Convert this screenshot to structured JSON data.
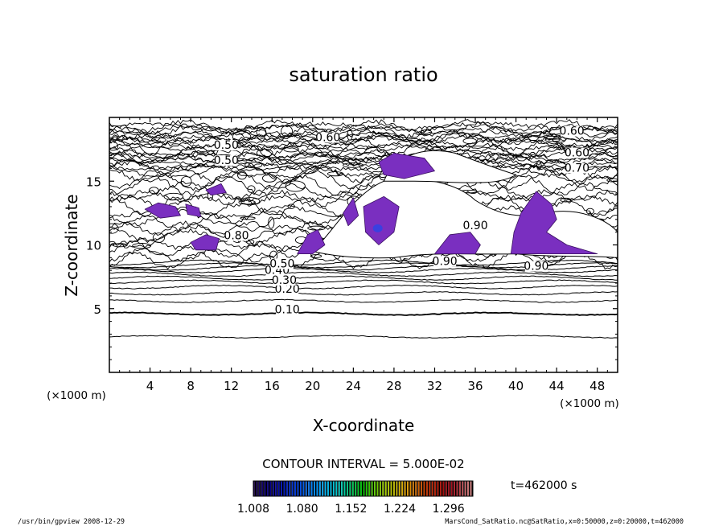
{
  "chart_data": {
    "type": "contour",
    "title": "saturation ratio",
    "xlabel": "X-coordinate",
    "ylabel": "Z-coordinate",
    "x_unit": "(×1000 m)",
    "y_unit": "(×1000 m)",
    "xlim": [
      0,
      50
    ],
    "ylim": [
      0,
      20
    ],
    "x_ticks": [
      4,
      8,
      12,
      16,
      20,
      24,
      28,
      32,
      36,
      40,
      44,
      48
    ],
    "y_ticks": [
      5,
      10,
      15
    ],
    "contour_interval_text": "CONTOUR INTERVAL = 5.000E-02",
    "time_text": "t=462000 s",
    "contour_labels": [
      {
        "text": "0.10",
        "x": 17.5,
        "z": 4.7
      },
      {
        "text": "0.20",
        "x": 17.5,
        "z": 6.3
      },
      {
        "text": "0.30",
        "x": 17.2,
        "z": 7.0
      },
      {
        "text": "0.40",
        "x": 16.5,
        "z": 7.8
      },
      {
        "text": "0.50",
        "x": 17.0,
        "z": 8.3
      },
      {
        "text": "0.50",
        "x": 11.5,
        "z": 17.6
      },
      {
        "text": "0.50",
        "x": 11.5,
        "z": 16.4
      },
      {
        "text": "0.60",
        "x": 21.5,
        "z": 18.2
      },
      {
        "text": "0.60",
        "x": 45.5,
        "z": 18.7
      },
      {
        "text": "0.60",
        "x": 46.0,
        "z": 17.0
      },
      {
        "text": "0.70",
        "x": 46.0,
        "z": 15.8
      },
      {
        "text": "0.80",
        "x": 12.5,
        "z": 10.5
      },
      {
        "text": "0.90",
        "x": 33.0,
        "z": 8.5
      },
      {
        "text": "0.90",
        "x": 42.0,
        "z": 8.1
      },
      {
        "text": "0.90",
        "x": 36.0,
        "z": 11.3
      }
    ],
    "shaded_regions": {
      "description_free": true,
      "levels": ">1.0"
    },
    "colorbar": {
      "tick_labels": [
        "1.008",
        "1.080",
        "1.152",
        "1.224",
        "1.296"
      ],
      "min": 1.008,
      "max": 1.332,
      "n_bins": 80,
      "colors_low_to_high": [
        "#1a004a",
        "#0000a0",
        "#0040e0",
        "#00a0ff",
        "#00d0c0",
        "#00c000",
        "#a0d000",
        "#e0a000",
        "#c03000",
        "#a00010",
        "#d08080"
      ]
    },
    "fill_color": "#7a2fc0",
    "fill_color_high": "#3a40e0"
  },
  "footer": {
    "left": "/usr/bin/gpview 2008-12-29",
    "right": "MarsCond_SatRatio.nc@SatRatio,x=0:50000,z=0:20000,t=462000"
  }
}
